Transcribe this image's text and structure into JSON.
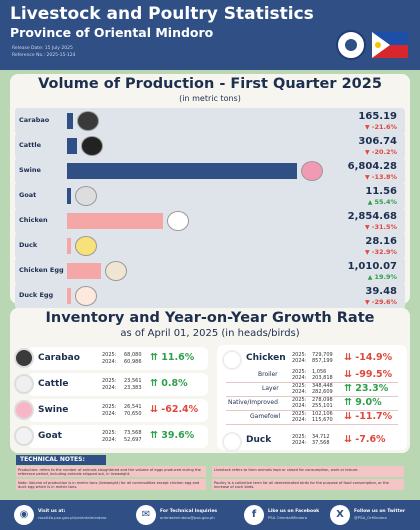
{
  "header": {
    "title": "Livestock and Poultry Statistics",
    "subtitle": "Province of Oriental Mindoro",
    "release_date": "Release Date: 15 July 2025",
    "reference_no": "Reference No.: 2025-15-124"
  },
  "volume": {
    "title": "Volume of Production - First Quarter 2025",
    "subtitle": "(in metric tons)",
    "items": [
      {
        "label": "Carabao",
        "value": "165.19",
        "change": "-21.6%",
        "dir": "down",
        "bar": 165.19,
        "color": "#2f4f85"
      },
      {
        "label": "Cattle",
        "value": "306.74",
        "change": "-20.2%",
        "dir": "down",
        "bar": 306.74,
        "color": "#2f4f85"
      },
      {
        "label": "Swine",
        "value": "6,804.28",
        "change": "-13.8%",
        "dir": "down",
        "bar": 6804.28,
        "color": "#2f4f85"
      },
      {
        "label": "Goat",
        "value": "11.56",
        "change": "55.4%",
        "dir": "up",
        "bar": 11.56,
        "color": "#2f4f85"
      },
      {
        "label": "Chicken",
        "value": "2,854.68",
        "change": "-31.5%",
        "dir": "down",
        "bar": 2854.68,
        "color": "#f5a6a6"
      },
      {
        "label": "Duck",
        "value": "28.16",
        "change": "-32.9%",
        "dir": "down",
        "bar": 28.16,
        "color": "#f5a6a6"
      },
      {
        "label": "Chicken Egg",
        "value": "1,010.07",
        "change": "19.9%",
        "dir": "up",
        "bar": 1010.07,
        "color": "#f5a6a6"
      },
      {
        "label": "Duck Egg",
        "value": "39.48",
        "change": "-29.6%",
        "dir": "down",
        "bar": 39.48,
        "color": "#f5a6a6"
      }
    ]
  },
  "inventory": {
    "title": "Inventory and Year-on-Year Growth Rate",
    "subtitle": "as of April 01, 2025 (in heads/birds)",
    "year_2025": "2025:",
    "year_2024": "2024:",
    "livestock": [
      {
        "label": "Carabao",
        "v2025": "68,080",
        "v2024": "60,986",
        "pct": "11.6%",
        "dir": "up"
      },
      {
        "label": "Cattle",
        "v2025": "23,561",
        "v2024": "23,383",
        "pct": "0.8%",
        "dir": "up"
      },
      {
        "label": "Swine",
        "v2025": "26,541",
        "v2024": "70,650",
        "pct": "-62.4%",
        "dir": "down"
      },
      {
        "label": "Goat",
        "v2025": "73,568",
        "v2024": "52,697",
        "pct": "39.6%",
        "dir": "up"
      }
    ],
    "chicken": {
      "label": "Chicken",
      "v2025": "729,709",
      "v2024": "857,199",
      "pct": "-14.9%",
      "dir": "down"
    },
    "chicken_sub": [
      {
        "label": "Broiler",
        "v2025": "1,056",
        "v2024": "203,818",
        "pct": "-99.5%",
        "dir": "down"
      },
      {
        "label": "Layer",
        "v2025": "348,448",
        "v2024": "282,609",
        "pct": "23.3%",
        "dir": "up"
      },
      {
        "label": "Native/Improved",
        "v2025": "278,098",
        "v2024": "255,101",
        "pct": "9.0%",
        "dir": "up"
      },
      {
        "label": "Gamefowl",
        "v2025": "102,106",
        "v2024": "115,670",
        "pct": "-11.7%",
        "dir": "down"
      }
    ],
    "duck": {
      "label": "Duck",
      "v2025": "34,712",
      "v2024": "37,568",
      "pct": "-7.6%",
      "dir": "down"
    }
  },
  "technical_notes": {
    "title": "TECHNICAL NOTES:",
    "note1": "Production: refers to the number of animals slaughtered and the volume of eggs produced during the reference period, including animals shipped out, in liveweight.",
    "note2": "Note: Volume of production is in metric tons (liveweight) for all commodities except chicken egg and duck egg which is in metric tons.",
    "note3": "Livestock refers to farm animals kept or raised for consumption, work or leisure.",
    "note4": "Poultry is a collective term for all domesticated birds for the purpose of food consumption, or the increase of such birds."
  },
  "footer": {
    "items": [
      {
        "label": "Visit us at:",
        "value": "rsso04b.psa.gov.ph/orientalmindoro",
        "icon": "globe-icon",
        "glyph": "◉"
      },
      {
        "label": "For Technical Inquiries",
        "value": "orientalmindoro@psa.gov.ph",
        "icon": "mail-icon",
        "glyph": "✉"
      },
      {
        "label": "Like us on Facebook",
        "value": "PSA OrientalMindoro",
        "icon": "facebook-icon",
        "glyph": "f"
      },
      {
        "label": "Follow us on Twitter",
        "value": "@PSA_OrMindoro",
        "icon": "x-icon",
        "glyph": "X"
      }
    ]
  }
}
